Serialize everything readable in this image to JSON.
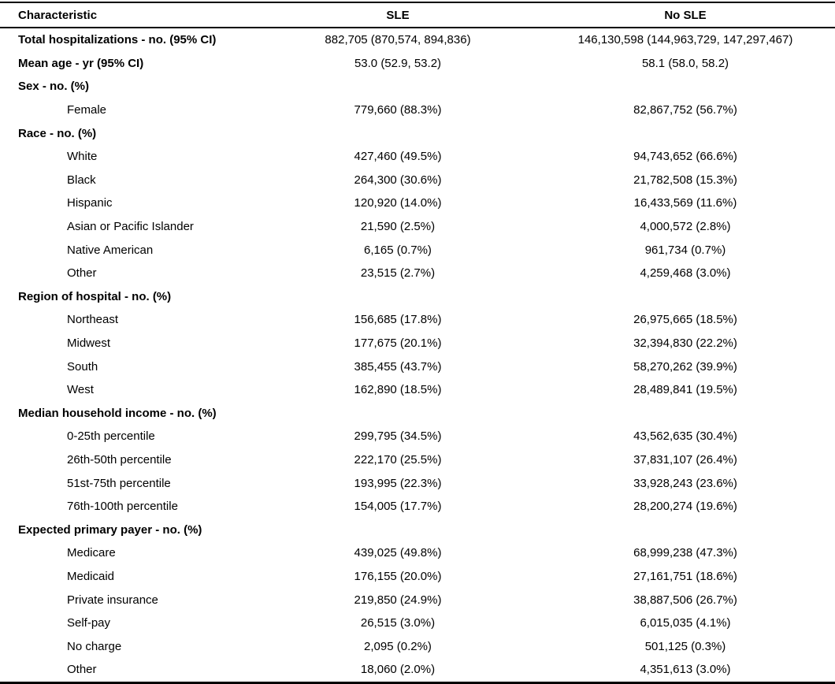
{
  "table": {
    "columns": [
      {
        "label": "Characteristic"
      },
      {
        "label": "SLE"
      },
      {
        "label": "No SLE"
      }
    ],
    "rows": [
      {
        "label": "Total hospitalizations - no. (95% CI)",
        "bold": true,
        "indent": false,
        "sle": "882,705 (870,574, 894,836)",
        "no_sle": "146,130,598 (144,963,729, 147,297,467)"
      },
      {
        "label": "Mean age - yr (95% CI)",
        "bold": true,
        "indent": false,
        "sle": "53.0 (52.9, 53.2)",
        "no_sle": "58.1 (58.0, 58.2)"
      },
      {
        "label": "Sex - no. (%)",
        "bold": true,
        "indent": false,
        "sle": "",
        "no_sle": ""
      },
      {
        "label": "Female",
        "bold": false,
        "indent": true,
        "sle": "779,660 (88.3%)",
        "no_sle": "82,867,752 (56.7%)"
      },
      {
        "label": "Race - no. (%)",
        "bold": true,
        "indent": false,
        "sle": "",
        "no_sle": ""
      },
      {
        "label": "White",
        "bold": false,
        "indent": true,
        "sle": "427,460 (49.5%)",
        "no_sle": "94,743,652 (66.6%)"
      },
      {
        "label": "Black",
        "bold": false,
        "indent": true,
        "sle": "264,300 (30.6%)",
        "no_sle": "21,782,508 (15.3%)"
      },
      {
        "label": "Hispanic",
        "bold": false,
        "indent": true,
        "sle": "120,920 (14.0%)",
        "no_sle": "16,433,569 (11.6%)"
      },
      {
        "label": "Asian or Pacific Islander",
        "bold": false,
        "indent": true,
        "sle": "21,590 (2.5%)",
        "no_sle": "4,000,572 (2.8%)"
      },
      {
        "label": "Native American",
        "bold": false,
        "indent": true,
        "sle": "6,165 (0.7%)",
        "no_sle": "961,734 (0.7%)"
      },
      {
        "label": "Other",
        "bold": false,
        "indent": true,
        "sle": "23,515 (2.7%)",
        "no_sle": "4,259,468 (3.0%)"
      },
      {
        "label": "Region of hospital - no. (%)",
        "bold": true,
        "indent": false,
        "sle": "",
        "no_sle": ""
      },
      {
        "label": "Northeast",
        "bold": false,
        "indent": true,
        "sle": "156,685 (17.8%)",
        "no_sle": "26,975,665 (18.5%)"
      },
      {
        "label": "Midwest",
        "bold": false,
        "indent": true,
        "sle": "177,675 (20.1%)",
        "no_sle": "32,394,830 (22.2%)"
      },
      {
        "label": "South",
        "bold": false,
        "indent": true,
        "sle": "385,455 (43.7%)",
        "no_sle": "58,270,262 (39.9%)"
      },
      {
        "label": "West",
        "bold": false,
        "indent": true,
        "sle": "162,890 (18.5%)",
        "no_sle": "28,489,841 (19.5%)"
      },
      {
        "label": "Median household income - no. (%)",
        "bold": true,
        "indent": false,
        "sle": "",
        "no_sle": ""
      },
      {
        "label": "0-25th percentile",
        "bold": false,
        "indent": true,
        "sle": "299,795 (34.5%)",
        "no_sle": "43,562,635 (30.4%)"
      },
      {
        "label": "26th-50th percentile",
        "bold": false,
        "indent": true,
        "sle": "222,170 (25.5%)",
        "no_sle": "37,831,107 (26.4%)"
      },
      {
        "label": "51st-75th percentile",
        "bold": false,
        "indent": true,
        "sle": "193,995 (22.3%)",
        "no_sle": "33,928,243 (23.6%)"
      },
      {
        "label": "76th-100th percentile",
        "bold": false,
        "indent": true,
        "sle": "154,005 (17.7%)",
        "no_sle": "28,200,274 (19.6%)"
      },
      {
        "label": "Expected primary payer - no. (%)",
        "bold": true,
        "indent": false,
        "sle": "",
        "no_sle": ""
      },
      {
        "label": "Medicare",
        "bold": false,
        "indent": true,
        "sle": "439,025 (49.8%)",
        "no_sle": "68,999,238 (47.3%)"
      },
      {
        "label": "Medicaid",
        "bold": false,
        "indent": true,
        "sle": "176,155 (20.0%)",
        "no_sle": "27,161,751 (18.6%)"
      },
      {
        "label": "Private insurance",
        "bold": false,
        "indent": true,
        "sle": "219,850 (24.9%)",
        "no_sle": "38,887,506 (26.7%)"
      },
      {
        "label": "Self-pay",
        "bold": false,
        "indent": true,
        "sle": "26,515 (3.0%)",
        "no_sle": "6,015,035 (4.1%)"
      },
      {
        "label": "No charge",
        "bold": false,
        "indent": true,
        "sle": "2,095 (0.2%)",
        "no_sle": "501,125 (0.3%)"
      },
      {
        "label": "Other",
        "bold": false,
        "indent": true,
        "sle": "18,060 (2.0%)",
        "no_sle": "4,351,613 (3.0%)"
      }
    ]
  }
}
